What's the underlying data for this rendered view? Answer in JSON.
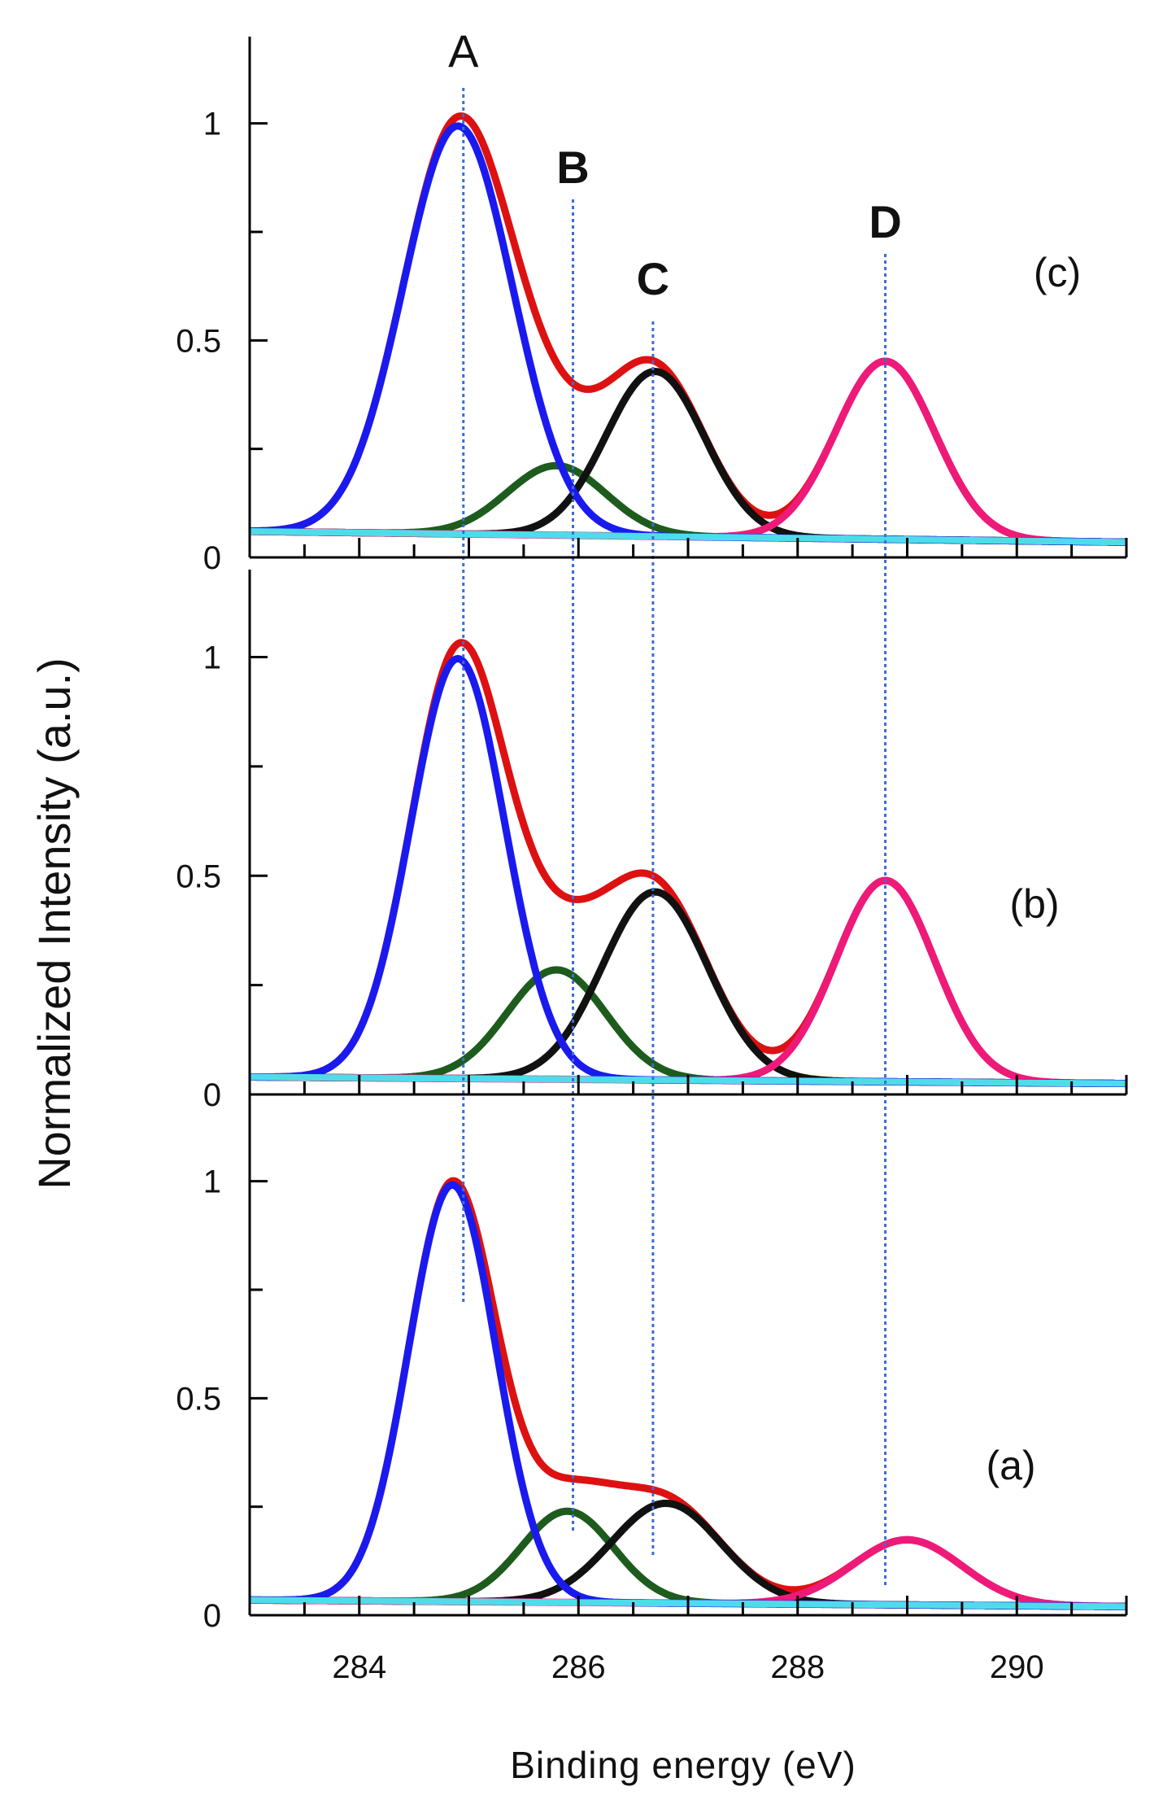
{
  "chart_data": {
    "type": "line",
    "title": "",
    "xlabel": "Binding energy (eV)",
    "ylabel": "Normalized Intensity (a.u.)",
    "xlim": [
      283,
      291
    ],
    "ylim": [
      0,
      1.2
    ],
    "x_ticks": [
      284,
      286,
      288,
      290
    ],
    "x_tick_labels": [
      "284",
      "286",
      "288",
      "290"
    ],
    "y_ticks": [
      0,
      0.5,
      1
    ],
    "y_tick_labels": [
      "0",
      "0.5",
      "1"
    ],
    "grid": false,
    "colors": {
      "envelope": "#dd1111",
      "A": "#1a1aee",
      "B": "#1d5c1d",
      "C": "#111111",
      "D": "#ee1a7a",
      "background": "#4fdcea",
      "marker_line": "#3a6ecf"
    },
    "markers": [
      {
        "label": "A",
        "x": 284.95,
        "bold": false
      },
      {
        "label": "B",
        "x": 285.95,
        "bold": true
      },
      {
        "label": "C",
        "x": 286.68,
        "bold": true
      },
      {
        "label": "D",
        "x": 288.8,
        "bold": true
      }
    ],
    "panels": [
      {
        "label": "(c)",
        "baseline": [
          0.06,
          0.035
        ],
        "components": [
          {
            "name": "A",
            "center": 284.9,
            "amplitude": 0.94,
            "sigma": 0.5
          },
          {
            "name": "B",
            "center": 285.8,
            "amplitude": 0.16,
            "sigma": 0.45
          },
          {
            "name": "C",
            "center": 286.7,
            "amplitude": 0.38,
            "sigma": 0.45
          },
          {
            "name": "D",
            "center": 288.8,
            "amplitude": 0.41,
            "sigma": 0.45
          }
        ]
      },
      {
        "label": "(b)",
        "baseline": [
          0.04,
          0.025
        ],
        "components": [
          {
            "name": "A",
            "center": 284.9,
            "amplitude": 0.96,
            "sigma": 0.43
          },
          {
            "name": "B",
            "center": 285.8,
            "amplitude": 0.25,
            "sigma": 0.45
          },
          {
            "name": "C",
            "center": 286.7,
            "amplitude": 0.43,
            "sigma": 0.48
          },
          {
            "name": "D",
            "center": 288.8,
            "amplitude": 0.46,
            "sigma": 0.45
          }
        ]
      },
      {
        "label": "(a)",
        "baseline": [
          0.035,
          0.02
        ],
        "components": [
          {
            "name": "A",
            "center": 284.85,
            "amplitude": 0.96,
            "sigma": 0.4
          },
          {
            "name": "B",
            "center": 285.9,
            "amplitude": 0.21,
            "sigma": 0.42
          },
          {
            "name": "C",
            "center": 286.8,
            "amplitude": 0.23,
            "sigma": 0.5
          },
          {
            "name": "D",
            "center": 289.0,
            "amplitude": 0.15,
            "sigma": 0.5
          }
        ]
      }
    ]
  }
}
